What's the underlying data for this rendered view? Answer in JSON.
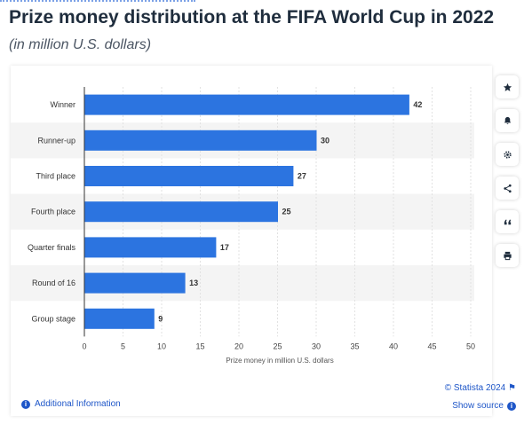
{
  "header": {
    "title": "Prize money distribution at the FIFA World Cup in 2022",
    "subtitle": "(in million U.S. dollars)"
  },
  "chart_data": {
    "type": "bar",
    "orientation": "horizontal",
    "categories": [
      "Winner",
      "Runner-up",
      "Third place",
      "Fourth place",
      "Quarter finals",
      "Round of 16",
      "Group stage"
    ],
    "values": [
      42,
      30,
      27,
      25,
      17,
      13,
      9
    ],
    "xlabel": "Prize money in million U.S. dollars",
    "ylabel": "",
    "xlim": [
      0,
      50
    ],
    "xticks": [
      0,
      5,
      10,
      15,
      20,
      25,
      30,
      35,
      40,
      45,
      50
    ],
    "grid": true,
    "bar_color": "#2c74e0",
    "alternate_row_color": "#f4f4f4"
  },
  "toolbar": {
    "icons": [
      "star-icon",
      "bell-icon",
      "gear-icon",
      "share-icon",
      "quote-icon",
      "print-icon"
    ]
  },
  "footer": {
    "credit": "© Statista 2024",
    "additional_info": "Additional Information",
    "show_source": "Show source"
  }
}
